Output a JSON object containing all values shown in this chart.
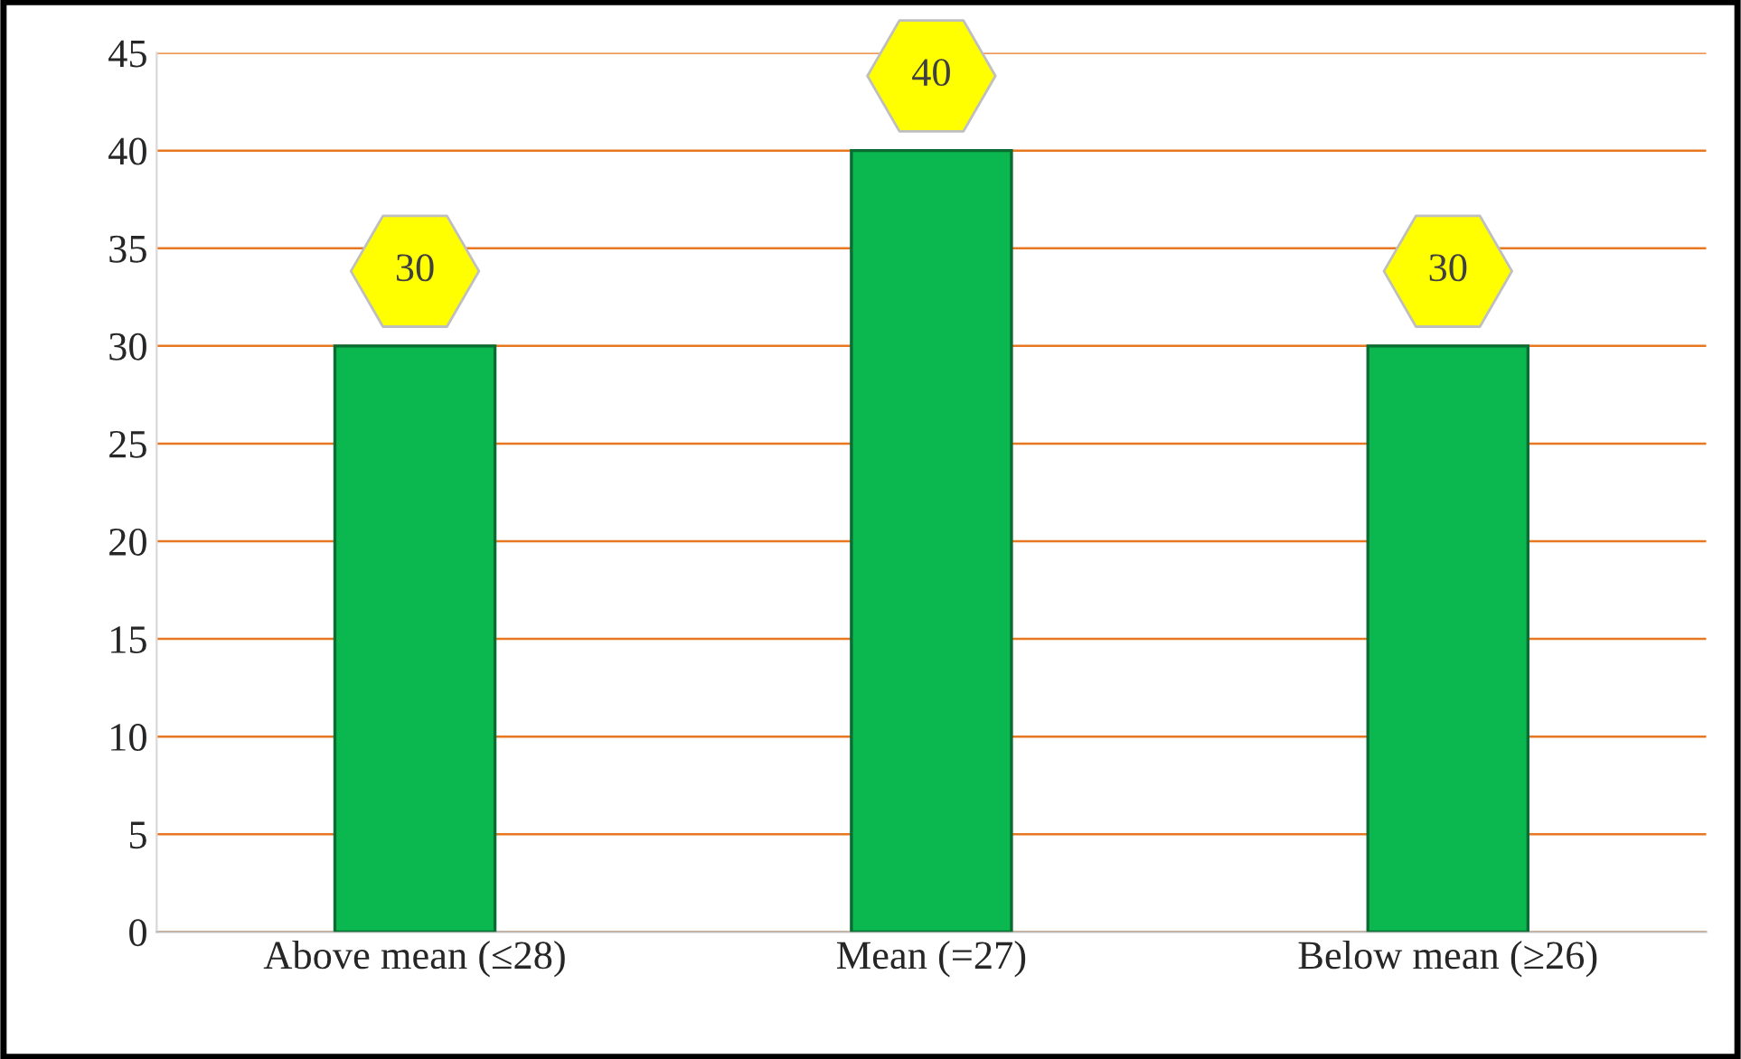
{
  "chart_data": {
    "type": "bar",
    "categories": [
      "Above mean (≤28)",
      "Mean (=27)",
      "Below mean (≥26)"
    ],
    "values": [
      30,
      40,
      30
    ],
    "color": "#0bb84f",
    "ylim": [
      0,
      45
    ],
    "yticks": [
      0,
      5,
      10,
      15,
      20,
      25,
      30,
      35,
      40,
      45
    ],
    "grid": "y",
    "data_labels": true
  }
}
